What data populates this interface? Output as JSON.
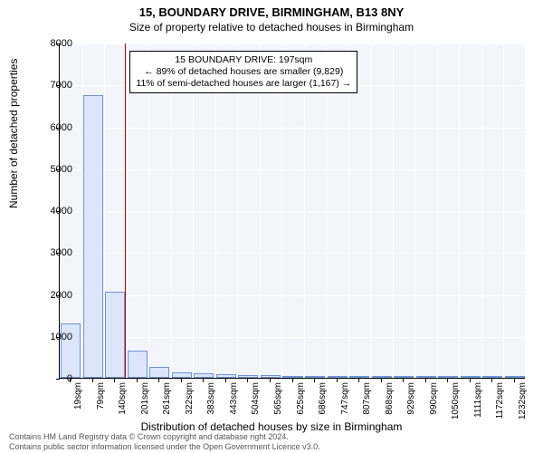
{
  "title": "15, BOUNDARY DRIVE, BIRMINGHAM, B13 8NY",
  "subtitle": "Size of property relative to detached houses in Birmingham",
  "chart": {
    "type": "histogram",
    "plot_bg": "#f3f5fb",
    "grid_color": "#ffffff",
    "bar_fill": "#dbe6fb",
    "bar_border": "#6e94d6",
    "marker_color": "#cc0000",
    "ylim": [
      0,
      8000
    ],
    "ytick_step": 1000,
    "yticks": [
      0,
      1000,
      2000,
      3000,
      4000,
      5000,
      6000,
      7000,
      8000
    ],
    "ylabel": "Number of detached properties",
    "xlabel": "Distribution of detached houses by size in Birmingham",
    "xticks": [
      "19sqm",
      "79sqm",
      "140sqm",
      "201sqm",
      "261sqm",
      "322sqm",
      "383sqm",
      "443sqm",
      "504sqm",
      "565sqm",
      "625sqm",
      "686sqm",
      "747sqm",
      "807sqm",
      "868sqm",
      "929sqm",
      "990sqm",
      "1050sqm",
      "1111sqm",
      "1172sqm",
      "1232sqm"
    ],
    "bar_values": [
      1300,
      6750,
      2050,
      650,
      250,
      120,
      100,
      80,
      70,
      60,
      30,
      20,
      15,
      10,
      10,
      5,
      5,
      5,
      3,
      2,
      1
    ],
    "marker_bin_index": 2,
    "label_fontsize": 12,
    "tick_fontsize": 11
  },
  "annotation": {
    "line1": "15 BOUNDARY DRIVE: 197sqm",
    "line2": "← 89% of detached houses are smaller (9,829)",
    "line3": "11% of semi-detached houses are larger (1,167) →"
  },
  "footer": {
    "line1": "Contains HM Land Registry data © Crown copyright and database right 2024.",
    "line2": "Contains public sector information licensed under the Open Government Licence v3.0."
  }
}
